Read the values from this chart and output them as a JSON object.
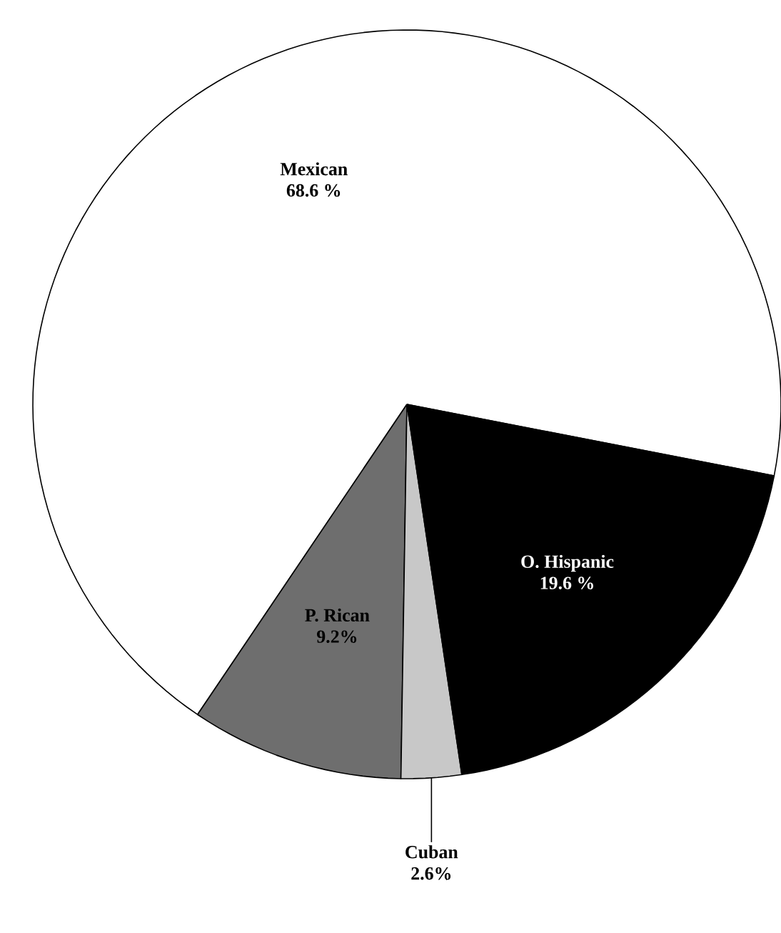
{
  "chart_data": {
    "type": "pie",
    "categories": [
      "Mexican",
      "P. Rican",
      "Cuban",
      "O. Hispanic"
    ],
    "values": [
      68.6,
      9.2,
      2.6,
      19.6
    ],
    "value_labels": [
      "68.6 %",
      "9.2%",
      "2.6%",
      "19.6 %"
    ],
    "colors": [
      "#ffffff",
      "#6e6e6e",
      "#c8c8c8",
      "#000000"
    ]
  }
}
